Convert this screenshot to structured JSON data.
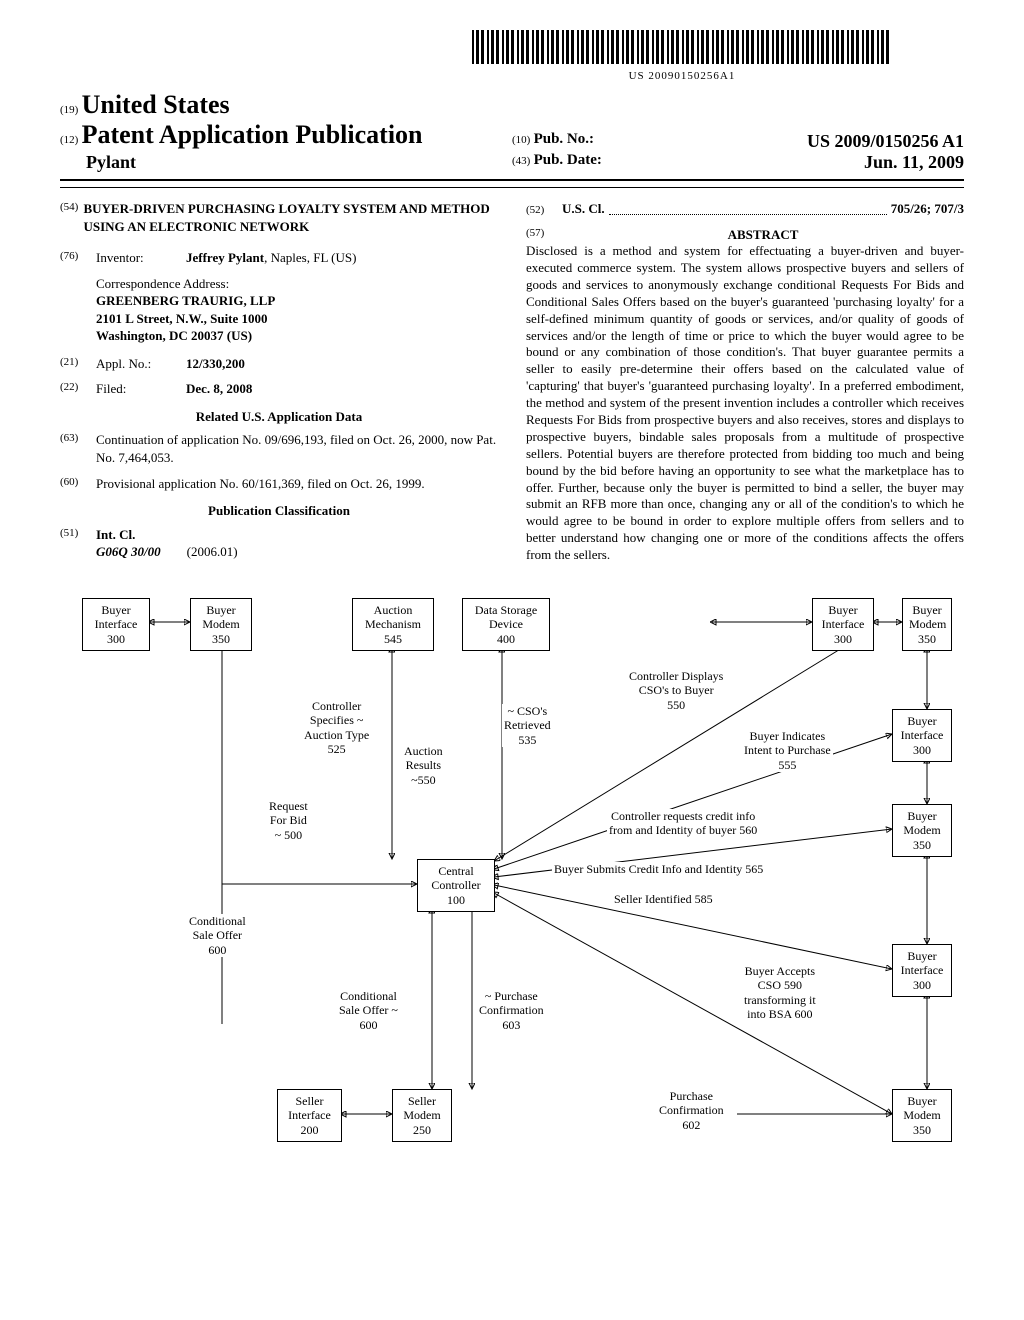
{
  "barcode_text": "US 20090150256A1",
  "header": {
    "num19": "(19)",
    "country": "United States",
    "num12": "(12)",
    "pub_type": "Patent Application Publication",
    "inventor_surname": "Pylant",
    "num10": "(10)",
    "pub_no_label": "Pub. No.:",
    "pub_no": "US 2009/0150256 A1",
    "num43": "(43)",
    "pub_date_label": "Pub. Date:",
    "pub_date": "Jun. 11, 2009"
  },
  "left": {
    "n54": "(54)",
    "title": "BUYER-DRIVEN PURCHASING LOYALTY SYSTEM AND METHOD USING AN ELECTRONIC NETWORK",
    "n76": "(76)",
    "inventor_label": "Inventor:",
    "inventor": "Jeffrey Pylant",
    "inventor_loc": ", Naples, FL (US)",
    "corr_label": "Correspondence Address:",
    "corr1": "GREENBERG TRAURIG, LLP",
    "corr2": "2101 L Street, N.W., Suite 1000",
    "corr3": "Washington, DC 20037 (US)",
    "n21": "(21)",
    "appl_label": "Appl. No.:",
    "appl_no": "12/330,200",
    "n22": "(22)",
    "filed_label": "Filed:",
    "filed": "Dec. 8, 2008",
    "related_head": "Related U.S. Application Data",
    "n63": "(63)",
    "cont": "Continuation of application No. 09/696,193, filed on Oct. 26, 2000, now Pat. No. 7,464,053.",
    "n60": "(60)",
    "prov": "Provisional application No. 60/161,369, filed on Oct. 26, 1999.",
    "class_head": "Publication Classification",
    "n51": "(51)",
    "intcl_label": "Int. Cl.",
    "intcl_code": "G06Q 30/00",
    "intcl_date": "(2006.01)"
  },
  "right": {
    "n52": "(52)",
    "uscl_label": "U.S. Cl.",
    "uscl_val": "705/26; 707/3",
    "n57": "(57)",
    "abstract_head": "ABSTRACT",
    "abstract": "Disclosed is a method and system for effectuating a buyer-driven and buyer-executed commerce system. The system allows prospective buyers and sellers of goods and services to anonymously exchange conditional Requests For Bids and Conditional Sales Offers based on the buyer's guaranteed 'purchasing loyalty' for a self-defined minimum quantity of goods or services, and/or quality of goods of services and/or the length of time or price to which the buyer would agree to be bound or any combination of those condition's. That buyer guarantee permits a seller to easily pre-determine their offers based on the calculated value of 'capturing' that buyer's 'guaranteed purchasing loyalty'. In a preferred embodiment, the method and system of the present invention includes a controller which receives Requests For Bids from prospective buyers and also receives, stores and displays to prospective buyers, bindable sales proposals from a multitude of prospective sellers. Potential buyers are therefore protected from bidding too much and being bound by the bid before having an opportunity to see what the marketplace has to offer. Further, because only the buyer is permitted to bind a seller, the buyer may submit an RFB more than once, changing any or all of the condition's to which he would agree to be bound in order to explore multiple offers from sellers and to better understand how changing one or more of the conditions affects the offers from the sellers."
  },
  "diagram": {
    "boxes": {
      "buyer_iface_tl": "Buyer\nInterface\n300",
      "buyer_modem_tl": "Buyer\nModem\n350",
      "auction_mech": "Auction\nMechanism\n545",
      "data_storage": "Data Storage\nDevice\n400",
      "buyer_iface_tr": "Buyer\nInterface\n300",
      "buyer_modem_tr": "Buyer\nModem\n350",
      "buyer_iface_r1": "Buyer\nInterface\n300",
      "buyer_modem_r2": "Buyer\nModem\n350",
      "buyer_iface_r3": "Buyer\nInterface\n300",
      "buyer_modem_r4": "Buyer\nModem\n350",
      "central": "Central\nController\n100",
      "seller_iface": "Seller\nInterface\n200",
      "seller_modem": "Seller\nModem\n250"
    },
    "labels": {
      "ctrl_spec": "Controller\nSpecifies ~\nAuction Type\n525",
      "auction_results": "Auction\nResults\n~550",
      "rfb": "Request\nFor Bid\n~ 500",
      "cso_retr": "~ CSO's\nRetrieved\n535",
      "ctrl_disp": "Controller Displays\nCSO's to Buyer\n550",
      "buyer_intent": "Buyer Indicates\nIntent to Purchase\n555",
      "credit_req": "Controller requests credit info\nfrom and Identity of buyer 560",
      "credit_submit": "Buyer Submits Credit Info and Identity 565",
      "seller_ident": "Seller Identified 585",
      "cond_sale": "Conditional\nSale Offer\n600",
      "cond_sale2": "Conditional\nSale Offer ~\n600",
      "purch_conf": "~ Purchase\nConfirmation\n603",
      "buyer_accepts": "Buyer Accepts\nCSO 590\ntransforming it\ninto BSA 600",
      "purch_conf2": "Purchase\nConfirmation\n602"
    }
  }
}
